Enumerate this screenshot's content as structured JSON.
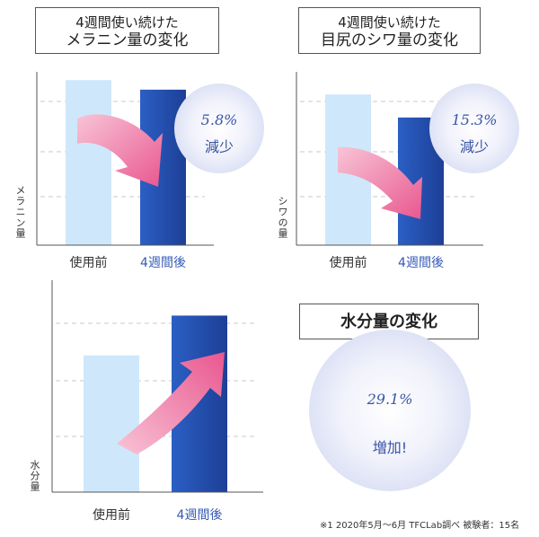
{
  "colors": {
    "before_bar": "#cfe7fb",
    "after_bar": "#2a53b0",
    "arrow": "#ee6b9d",
    "badge_bg": "#eef0fb",
    "badge_text": "#3a55a5",
    "category_after": "#3459b5"
  },
  "chart_data": [
    {
      "type": "bar",
      "title": "4週間使い続けた\nメラニン量の変化",
      "title_line1": "4週間使い続けた",
      "title_line2": "メラニン量の変化",
      "ylabel": "メラニン量",
      "categories": [
        "使用前",
        "4週間後"
      ],
      "values": [
        100,
        94.2
      ],
      "ylim": [
        0,
        105
      ],
      "grid": true,
      "badge_value": "5.8",
      "badge_unit": "%",
      "badge_label": "減少",
      "arrow": "down"
    },
    {
      "type": "bar",
      "title": "4週間使い続けた\n目尻のシワ量の変化",
      "title_line1": "4週間使い続けた",
      "title_line2": "目尻のシワ量の変化",
      "ylabel": "シワの量",
      "categories": [
        "使用前",
        "4週間後"
      ],
      "values": [
        100,
        84.7
      ],
      "ylim": [
        0,
        115
      ],
      "grid": true,
      "badge_value": "15.3",
      "badge_unit": "%",
      "badge_label": "減少",
      "arrow": "down"
    },
    {
      "type": "bar",
      "title": "水分量の変化",
      "ylabel": "水分量",
      "categories": [
        "使用前",
        "4週間後"
      ],
      "values": [
        100,
        129.1
      ],
      "ylim": [
        0,
        155
      ],
      "grid": true,
      "badge_value": "29.1",
      "badge_unit": "%",
      "badge_label": "増加!",
      "arrow": "up"
    }
  ],
  "footnote": "※1  2020年5月～6月   TFCLab調べ   被験者：15名"
}
